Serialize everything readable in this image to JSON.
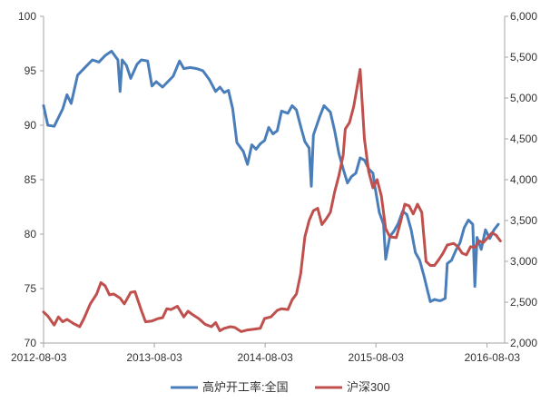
{
  "chart_data": {
    "type": "line",
    "title": "",
    "x_ticks": [
      "2012-08-03",
      "2013-08-03",
      "2014-08-03",
      "2015-08-03",
      "2016-08-03"
    ],
    "y_left": {
      "min": 70,
      "max": 100,
      "ticks": [
        "70",
        "75",
        "80",
        "85",
        "90",
        "95",
        "100"
      ]
    },
    "y_right": {
      "min": 2000,
      "max": 6000,
      "ticks": [
        "2,000",
        "2,500",
        "3,000",
        "3,500",
        "4,000",
        "4,500",
        "5,000",
        "5,500",
        "6,000"
      ]
    },
    "x_range": [
      "2012-08-03",
      "2016-09-30"
    ],
    "grid": false,
    "legend_position": "bottom",
    "series": [
      {
        "name": "高炉开工率:全国",
        "axis": "left",
        "color": "#4a7ebb",
        "points": [
          [
            "2012-08-03",
            91.8
          ],
          [
            "2012-08-17",
            90.0
          ],
          [
            "2012-09-07",
            89.9
          ],
          [
            "2012-10-05",
            91.5
          ],
          [
            "2012-10-19",
            92.8
          ],
          [
            "2012-11-02",
            92.0
          ],
          [
            "2012-11-23",
            94.6
          ],
          [
            "2012-12-21",
            95.4
          ],
          [
            "2013-01-11",
            96.0
          ],
          [
            "2013-02-01",
            95.8
          ],
          [
            "2013-02-22",
            96.4
          ],
          [
            "2013-03-15",
            96.8
          ],
          [
            "2013-04-05",
            96.0
          ],
          [
            "2013-04-12",
            93.1
          ],
          [
            "2013-04-19",
            96.0
          ],
          [
            "2013-05-03",
            95.5
          ],
          [
            "2013-05-17",
            94.3
          ],
          [
            "2013-06-07",
            95.6
          ],
          [
            "2013-06-21",
            96.0
          ],
          [
            "2013-07-12",
            95.9
          ],
          [
            "2013-07-26",
            93.6
          ],
          [
            "2013-08-09",
            94.0
          ],
          [
            "2013-08-30",
            93.5
          ],
          [
            "2013-10-04",
            94.5
          ],
          [
            "2013-10-25",
            95.9
          ],
          [
            "2013-11-08",
            95.2
          ],
          [
            "2013-11-29",
            95.3
          ],
          [
            "2013-12-20",
            95.2
          ],
          [
            "2014-01-10",
            95.0
          ],
          [
            "2014-01-31",
            94.2
          ],
          [
            "2014-02-21",
            93.1
          ],
          [
            "2014-03-07",
            93.5
          ],
          [
            "2014-03-21",
            93.0
          ],
          [
            "2014-04-04",
            93.2
          ],
          [
            "2014-04-18",
            91.5
          ],
          [
            "2014-05-02",
            88.4
          ],
          [
            "2014-05-23",
            87.6
          ],
          [
            "2014-06-06",
            86.4
          ],
          [
            "2014-06-20",
            88.2
          ],
          [
            "2014-07-04",
            87.8
          ],
          [
            "2014-07-18",
            88.3
          ],
          [
            "2014-08-01",
            88.6
          ],
          [
            "2014-08-15",
            89.8
          ],
          [
            "2014-08-29",
            89.2
          ],
          [
            "2014-09-12",
            89.5
          ],
          [
            "2014-09-26",
            91.3
          ],
          [
            "2014-10-17",
            91.1
          ],
          [
            "2014-10-31",
            91.8
          ],
          [
            "2014-11-14",
            91.4
          ],
          [
            "2014-11-28",
            89.9
          ],
          [
            "2014-12-12",
            88.5
          ],
          [
            "2014-12-26",
            87.9
          ],
          [
            "2015-01-02",
            84.4
          ],
          [
            "2015-01-09",
            89.1
          ],
          [
            "2015-01-30",
            90.8
          ],
          [
            "2015-02-13",
            91.8
          ],
          [
            "2015-03-06",
            91.2
          ],
          [
            "2015-03-20",
            89.5
          ],
          [
            "2015-04-03",
            87.4
          ],
          [
            "2015-04-17",
            86.0
          ],
          [
            "2015-05-01",
            84.7
          ],
          [
            "2015-05-15",
            85.3
          ],
          [
            "2015-05-29",
            85.6
          ],
          [
            "2015-06-12",
            87.0
          ],
          [
            "2015-06-26",
            86.8
          ],
          [
            "2015-07-10",
            86.0
          ],
          [
            "2015-07-24",
            85.6
          ],
          [
            "2015-07-31",
            84.3
          ],
          [
            "2015-08-14",
            82.0
          ],
          [
            "2015-08-28",
            80.9
          ],
          [
            "2015-09-04",
            77.7
          ],
          [
            "2015-09-18",
            79.8
          ],
          [
            "2015-10-02",
            80.3
          ],
          [
            "2015-10-16",
            81.0
          ],
          [
            "2015-10-30",
            82.1
          ],
          [
            "2015-11-13",
            81.8
          ],
          [
            "2015-11-27",
            80.4
          ],
          [
            "2015-12-11",
            78.3
          ],
          [
            "2015-12-25",
            77.6
          ],
          [
            "2016-01-08",
            76.2
          ],
          [
            "2016-01-22",
            74.6
          ],
          [
            "2016-01-29",
            73.8
          ],
          [
            "2016-02-12",
            74.0
          ],
          [
            "2016-02-26",
            73.9
          ],
          [
            "2016-03-04",
            73.9
          ],
          [
            "2016-03-18",
            74.1
          ],
          [
            "2016-03-25",
            77.3
          ],
          [
            "2016-04-08",
            77.6
          ],
          [
            "2016-04-22",
            78.5
          ],
          [
            "2016-05-06",
            79.2
          ],
          [
            "2016-05-20",
            80.6
          ],
          [
            "2016-06-03",
            81.3
          ],
          [
            "2016-06-17",
            80.9
          ],
          [
            "2016-06-24",
            75.2
          ],
          [
            "2016-07-01",
            79.7
          ],
          [
            "2016-07-15",
            78.6
          ],
          [
            "2016-07-29",
            80.4
          ],
          [
            "2016-08-12",
            79.6
          ],
          [
            "2016-08-26",
            80.4
          ],
          [
            "2016-09-09",
            80.9
          ]
        ]
      },
      {
        "name": "沪深300",
        "axis": "right",
        "color": "#c0504d",
        "points": [
          [
            "2012-08-03",
            2380
          ],
          [
            "2012-08-17",
            2330
          ],
          [
            "2012-09-07",
            2220
          ],
          [
            "2012-09-21",
            2320
          ],
          [
            "2012-10-05",
            2260
          ],
          [
            "2012-10-19",
            2290
          ],
          [
            "2012-11-09",
            2240
          ],
          [
            "2012-11-30",
            2200
          ],
          [
            "2012-12-14",
            2300
          ],
          [
            "2013-01-04",
            2480
          ],
          [
            "2013-01-25",
            2600
          ],
          [
            "2013-02-08",
            2740
          ],
          [
            "2013-02-22",
            2700
          ],
          [
            "2013-03-08",
            2590
          ],
          [
            "2013-03-22",
            2600
          ],
          [
            "2013-04-12",
            2550
          ],
          [
            "2013-04-26",
            2480
          ],
          [
            "2013-05-17",
            2620
          ],
          [
            "2013-05-31",
            2630
          ],
          [
            "2013-06-21",
            2400
          ],
          [
            "2013-07-05",
            2260
          ],
          [
            "2013-07-26",
            2270
          ],
          [
            "2013-08-16",
            2300
          ],
          [
            "2013-08-30",
            2310
          ],
          [
            "2013-09-13",
            2420
          ],
          [
            "2013-09-27",
            2410
          ],
          [
            "2013-10-18",
            2450
          ],
          [
            "2013-11-08",
            2320
          ],
          [
            "2013-11-22",
            2390
          ],
          [
            "2013-12-06",
            2350
          ],
          [
            "2013-12-27",
            2300
          ],
          [
            "2014-01-17",
            2230
          ],
          [
            "2014-02-07",
            2200
          ],
          [
            "2014-02-21",
            2250
          ],
          [
            "2014-03-07",
            2150
          ],
          [
            "2014-03-21",
            2180
          ],
          [
            "2014-04-11",
            2200
          ],
          [
            "2014-04-25",
            2190
          ],
          [
            "2014-05-16",
            2140
          ],
          [
            "2014-06-06",
            2160
          ],
          [
            "2014-06-27",
            2170
          ],
          [
            "2014-07-18",
            2180
          ],
          [
            "2014-08-01",
            2300
          ],
          [
            "2014-08-22",
            2320
          ],
          [
            "2014-09-12",
            2400
          ],
          [
            "2014-09-26",
            2420
          ],
          [
            "2014-10-17",
            2410
          ],
          [
            "2014-10-31",
            2530
          ],
          [
            "2014-11-14",
            2600
          ],
          [
            "2014-11-28",
            2850
          ],
          [
            "2014-12-12",
            3300
          ],
          [
            "2014-12-26",
            3500
          ],
          [
            "2015-01-09",
            3620
          ],
          [
            "2015-01-23",
            3650
          ],
          [
            "2015-02-06",
            3450
          ],
          [
            "2015-02-20",
            3520
          ],
          [
            "2015-03-06",
            3600
          ],
          [
            "2015-03-20",
            3850
          ],
          [
            "2015-04-03",
            4050
          ],
          [
            "2015-04-17",
            4300
          ],
          [
            "2015-04-24",
            4620
          ],
          [
            "2015-05-08",
            4700
          ],
          [
            "2015-05-22",
            4900
          ],
          [
            "2015-06-05",
            5200
          ],
          [
            "2015-06-12",
            5350
          ],
          [
            "2015-06-26",
            4500
          ],
          [
            "2015-07-10",
            4100
          ],
          [
            "2015-07-24",
            3900
          ],
          [
            "2015-08-07",
            4000
          ],
          [
            "2015-08-21",
            3800
          ],
          [
            "2015-09-04",
            3400
          ],
          [
            "2015-09-18",
            3300
          ],
          [
            "2015-10-09",
            3290
          ],
          [
            "2015-10-23",
            3480
          ],
          [
            "2015-11-06",
            3700
          ],
          [
            "2015-11-20",
            3680
          ],
          [
            "2015-12-04",
            3580
          ],
          [
            "2015-12-18",
            3700
          ],
          [
            "2016-01-01",
            3600
          ],
          [
            "2016-01-15",
            3000
          ],
          [
            "2016-01-29",
            2950
          ],
          [
            "2016-02-12",
            2950
          ],
          [
            "2016-02-26",
            3020
          ],
          [
            "2016-03-11",
            3100
          ],
          [
            "2016-03-25",
            3200
          ],
          [
            "2016-04-15",
            3220
          ],
          [
            "2016-04-29",
            3180
          ],
          [
            "2016-05-13",
            3100
          ],
          [
            "2016-05-27",
            3080
          ],
          [
            "2016-06-10",
            3180
          ],
          [
            "2016-06-24",
            3170
          ],
          [
            "2016-07-08",
            3250
          ],
          [
            "2016-07-22",
            3230
          ],
          [
            "2016-08-05",
            3290
          ],
          [
            "2016-08-19",
            3350
          ],
          [
            "2016-09-02",
            3320
          ],
          [
            "2016-09-16",
            3250
          ]
        ]
      }
    ]
  }
}
